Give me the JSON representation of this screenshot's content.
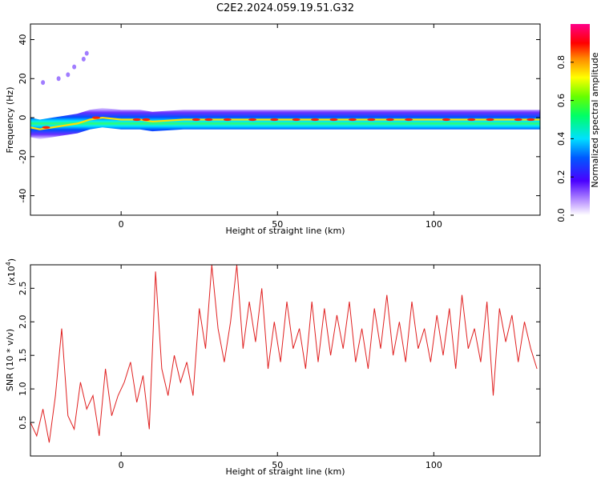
{
  "title": "C2E2.2024.059.19.51.G32",
  "chart_data": [
    {
      "type": "heatmap",
      "xlabel": "Height of straight line (km)",
      "ylabel": "Frequency (Hz)",
      "xlim": [
        -29,
        134
      ],
      "ylim": [
        -50,
        48
      ],
      "xticks": [
        0,
        50,
        100
      ],
      "yticks": [
        -40,
        -20,
        0,
        20,
        40
      ],
      "colorbar": {
        "label": "Normalized spectral amplitude",
        "range": [
          0,
          1
        ],
        "ticks": [
          "0.0",
          "0.2",
          "0.4",
          "0.6",
          "0.8"
        ]
      },
      "ridge": {
        "x": [
          -29,
          -26,
          -22,
          -18,
          -14,
          -10,
          -6,
          0,
          6,
          10,
          20,
          40,
          60,
          80,
          100,
          120,
          134
        ],
        "y": [
          -5,
          -6,
          -5,
          -4,
          -3,
          -1,
          0,
          -1,
          -1,
          -2,
          -1,
          -1,
          -1,
          -1,
          -1,
          -1,
          -1
        ]
      },
      "faint_points": [
        {
          "x": -25,
          "y": 18
        },
        {
          "x": -20,
          "y": 20
        },
        {
          "x": -17,
          "y": 22
        },
        {
          "x": -15,
          "y": 26
        },
        {
          "x": -12,
          "y": 30
        },
        {
          "x": -11,
          "y": 33
        }
      ],
      "grid": false
    },
    {
      "type": "line",
      "xlabel": "Height of straight line (km)",
      "ylabel": "SNR (10 * v/v)",
      "multiplier": "(x10",
      "multiplier_exp": "4",
      "multiplier_close": ")",
      "xlim": [
        -29,
        134
      ],
      "ylim": [
        0,
        2.85
      ],
      "xticks": [
        0,
        50,
        100
      ],
      "yticks": [
        "0.5",
        "1.0",
        "1.5",
        "2.0",
        "2.5"
      ],
      "series": [
        {
          "color": "#e02020",
          "x": [
            -29,
            -27,
            -25,
            -23,
            -21,
            -19,
            -17,
            -15,
            -13,
            -11,
            -9,
            -7,
            -5,
            -3,
            -1,
            1,
            3,
            5,
            7,
            9,
            11,
            13,
            15,
            17,
            19,
            21,
            23,
            25,
            27,
            29,
            31,
            33,
            35,
            37,
            39,
            41,
            43,
            45,
            47,
            49,
            51,
            53,
            55,
            57,
            59,
            61,
            63,
            65,
            67,
            69,
            71,
            73,
            75,
            77,
            79,
            81,
            83,
            85,
            87,
            89,
            91,
            93,
            95,
            97,
            99,
            101,
            103,
            105,
            107,
            109,
            111,
            113,
            115,
            117,
            119,
            121,
            123,
            125,
            127,
            129,
            131,
            133
          ],
          "y": [
            0.5,
            0.3,
            0.7,
            0.2,
            0.9,
            1.9,
            0.6,
            0.4,
            1.1,
            0.7,
            0.9,
            0.3,
            1.3,
            0.6,
            0.9,
            1.1,
            1.4,
            0.8,
            1.2,
            0.4,
            2.75,
            1.3,
            0.9,
            1.5,
            1.1,
            1.4,
            0.9,
            2.2,
            1.6,
            2.85,
            1.9,
            1.4,
            2.0,
            2.85,
            1.6,
            2.3,
            1.7,
            2.5,
            1.3,
            2.0,
            1.4,
            2.3,
            1.6,
            1.9,
            1.3,
            2.3,
            1.4,
            2.2,
            1.5,
            2.1,
            1.6,
            2.3,
            1.4,
            1.9,
            1.3,
            2.2,
            1.6,
            2.4,
            1.5,
            2.0,
            1.4,
            2.3,
            1.6,
            1.9,
            1.4,
            2.1,
            1.5,
            2.2,
            1.3,
            2.4,
            1.6,
            1.9,
            1.4,
            2.3,
            0.9,
            2.2,
            1.7,
            2.1,
            1.4,
            2.0,
            1.6,
            1.3
          ]
        }
      ],
      "grid": false
    }
  ]
}
